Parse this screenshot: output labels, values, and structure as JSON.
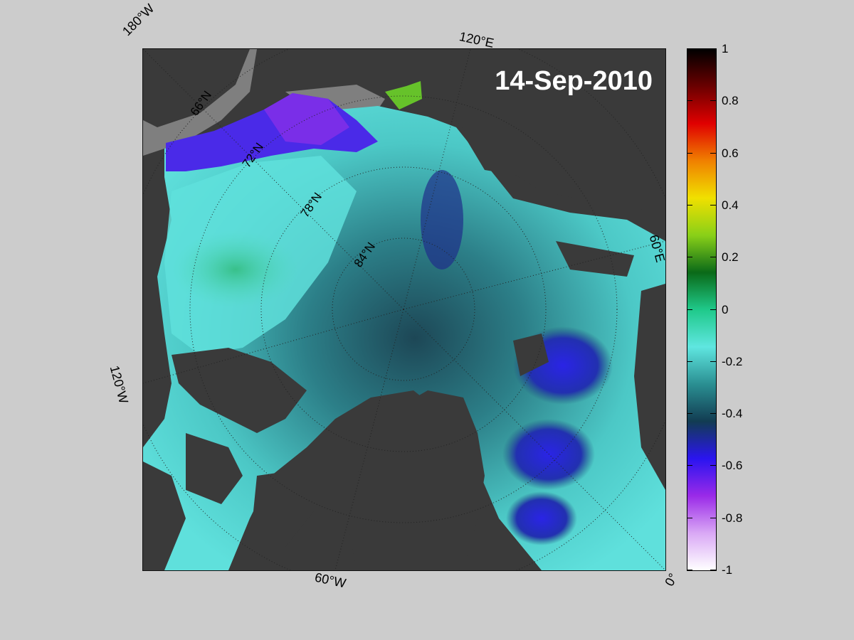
{
  "map": {
    "date": "14-Sep-2010",
    "longitude_labels": {
      "lon_180w": "180°W",
      "lon_120e": "120°E",
      "lon_60e": "60°E",
      "lon_120w": "120°W",
      "lon_60w": "60°W",
      "lon_0": "0°"
    },
    "latitude_labels": [
      "66°N",
      "72°N",
      "78°N",
      "84°N"
    ],
    "colors": {
      "land": "#3a3a3a",
      "shelf": "#7f7f7f",
      "ocean_low": "#1e4a59",
      "ocean_mid": "#3aa3a8",
      "ocean_high": "#5fe0df",
      "positive": "#2fb47d",
      "strong_negative": "#2f2ee0",
      "violet": "#6a2ee8"
    }
  },
  "colorbar": {
    "ticks": [
      "1",
      "0.8",
      "0.6",
      "0.4",
      "0.2",
      "0",
      "-0.2",
      "-0.4",
      "-0.6",
      "-0.8",
      "-1"
    ],
    "range": [
      -1,
      1
    ],
    "colormap": [
      "#ffffff",
      "#d9a8f5",
      "#9a2ae8",
      "#2a14f0",
      "#123c52",
      "#2a8f92",
      "#5fe6e0",
      "#1fc98a",
      "#0a6a18",
      "#8ad018",
      "#f0e000",
      "#f08000",
      "#e00000",
      "#6a0000",
      "#000000"
    ]
  }
}
